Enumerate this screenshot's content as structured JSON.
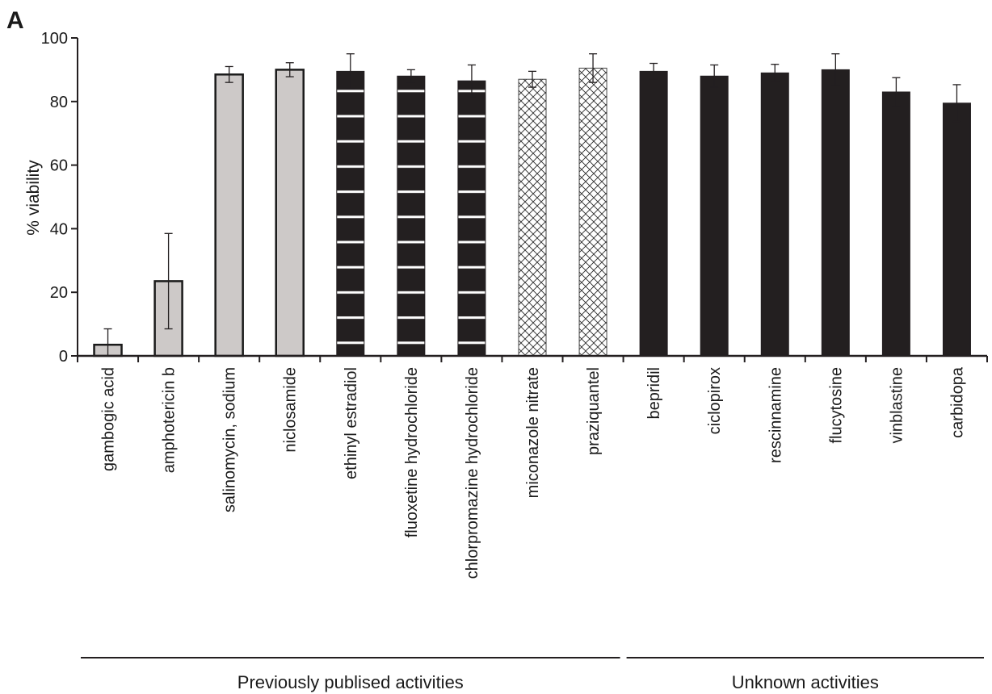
{
  "chart_data": {
    "type": "bar",
    "panel_label": "A",
    "ylabel": "% viability",
    "xlabel": "",
    "ylim": [
      0,
      100
    ],
    "yticks": [
      0,
      20,
      40,
      60,
      80,
      100
    ],
    "grid": false,
    "categories": [
      "gambogic acid",
      "amphotericin b",
      "salinomycin, sodium",
      "niclosamide",
      "ethinyl estradiol",
      "fluoxetine hydrochloride",
      "chlorpromazine hydrochloride",
      "miconazole nitrate",
      "praziquantel",
      "bepridil",
      "ciclopirox",
      "rescinnamine",
      "flucytosine",
      "vinblastine",
      "carbidopa"
    ],
    "values": [
      3.5,
      23.5,
      88.5,
      90,
      89.5,
      88,
      86.5,
      87,
      90.5,
      89.5,
      88,
      89,
      90,
      83,
      79.5
    ],
    "errors": [
      5.0,
      15.0,
      2.5,
      2.2,
      5.5,
      2.0,
      5.0,
      2.5,
      4.5,
      2.5,
      3.5,
      2.7,
      5.0,
      4.5,
      5.8
    ],
    "fill_styles": [
      "gray",
      "gray",
      "gray",
      "gray",
      "striped",
      "striped",
      "striped",
      "crosshatch",
      "crosshatch",
      "black",
      "black",
      "black",
      "black",
      "black",
      "black"
    ],
    "colors": {
      "gray": "#cdc9c8",
      "black": "#231f20",
      "stripe": "#ffffff",
      "crosshatch_bg": "#ffffff"
    },
    "groups": [
      {
        "label": "Previously publised activities",
        "from": 0,
        "to": 8
      },
      {
        "label": "Unknown activities",
        "from": 9,
        "to": 14
      }
    ]
  }
}
